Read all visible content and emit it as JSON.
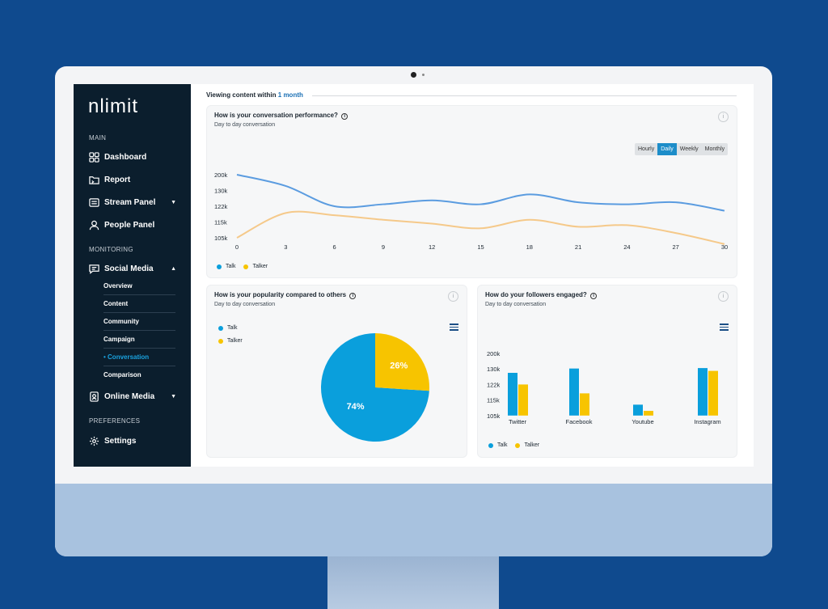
{
  "brand": {
    "logo_text": "nlimit"
  },
  "sidebar": {
    "sections": {
      "main": "MAIN",
      "monitoring": "MONITORING",
      "preferences": "PREFERENCES"
    },
    "items": [
      {
        "label": "Dashboard",
        "icon": "dashboard-icon"
      },
      {
        "label": "Report",
        "icon": "folder-icon"
      },
      {
        "label": "Stream Panel",
        "icon": "stream-icon",
        "caret": "▼"
      },
      {
        "label": "People Panel",
        "icon": "user-icon"
      },
      {
        "label": "Social Media",
        "icon": "social-icon",
        "caret": "▲"
      },
      {
        "label": "Online Media",
        "icon": "online-media-icon",
        "caret": "▼"
      },
      {
        "label": "Settings",
        "icon": "gear-icon"
      }
    ],
    "submenu": [
      "Overview",
      "Content",
      "Community",
      "Campaign",
      "Conversation",
      "Comparison"
    ],
    "active_submenu": "Conversation"
  },
  "header": {
    "viewing_prefix": "Viewing content within",
    "viewing_range": "1 month"
  },
  "performance": {
    "title": "How is your conversation performance?",
    "info": "i",
    "subtitle": "Day to day conversation",
    "tabs": [
      "Hourly",
      "Daily",
      "Weekly",
      "Monthly"
    ],
    "active_tab": "Daily"
  },
  "popularity": {
    "title": "How is your popularity compared to others",
    "info": "i",
    "subtitle": "Day to day conversation"
  },
  "followers": {
    "title": "How do your followers engaged?",
    "info": "i",
    "subtitle": "Day to day conversation"
  },
  "colors": {
    "talk": "#0a9fdc",
    "talker": "#f7c400",
    "line_talk": "#5b9ce0",
    "line_talker": "#f5c98a",
    "accent": "#1d8dc9"
  },
  "chart_data": [
    {
      "type": "line",
      "x_ticks": [
        "0",
        "3",
        "6",
        "9",
        "12",
        "15",
        "18",
        "21",
        "24",
        "27",
        "30"
      ],
      "y_ticks": [
        "200k",
        "130k",
        "122k",
        "115k",
        "105k"
      ],
      "series": [
        {
          "name": "Talk",
          "x": [
            0,
            3,
            6,
            9,
            12,
            15,
            18,
            21,
            24,
            27,
            30
          ],
          "values": [
            200,
            150,
            122,
            123,
            125,
            123,
            128,
            124,
            123,
            124,
            120
          ]
        },
        {
          "name": "Talker",
          "x": [
            0,
            3,
            6,
            9,
            12,
            15,
            18,
            21,
            24,
            27,
            30
          ],
          "values": [
            105,
            119,
            118,
            116,
            114,
            111,
            116,
            112,
            113,
            108,
            101
          ]
        }
      ],
      "legend": "bottom-left",
      "grid": false
    },
    {
      "type": "pie",
      "labels": [
        "Talk",
        "Talker"
      ],
      "values": [
        74,
        26
      ],
      "slice_labels": [
        "74%",
        "26%"
      ],
      "legend": "top-left"
    },
    {
      "type": "bar",
      "categories": [
        "Twitter",
        "Facebook",
        "Youtube",
        "Instagram"
      ],
      "y_ticks": [
        "200k",
        "130k",
        "122k",
        "115k",
        "105k"
      ],
      "series": [
        {
          "name": "Talk",
          "values": [
            128,
            132,
            112,
            134
          ]
        },
        {
          "name": "Talker",
          "values": [
            122,
            118,
            108,
            129
          ]
        }
      ],
      "legend": "bottom-left"
    }
  ]
}
